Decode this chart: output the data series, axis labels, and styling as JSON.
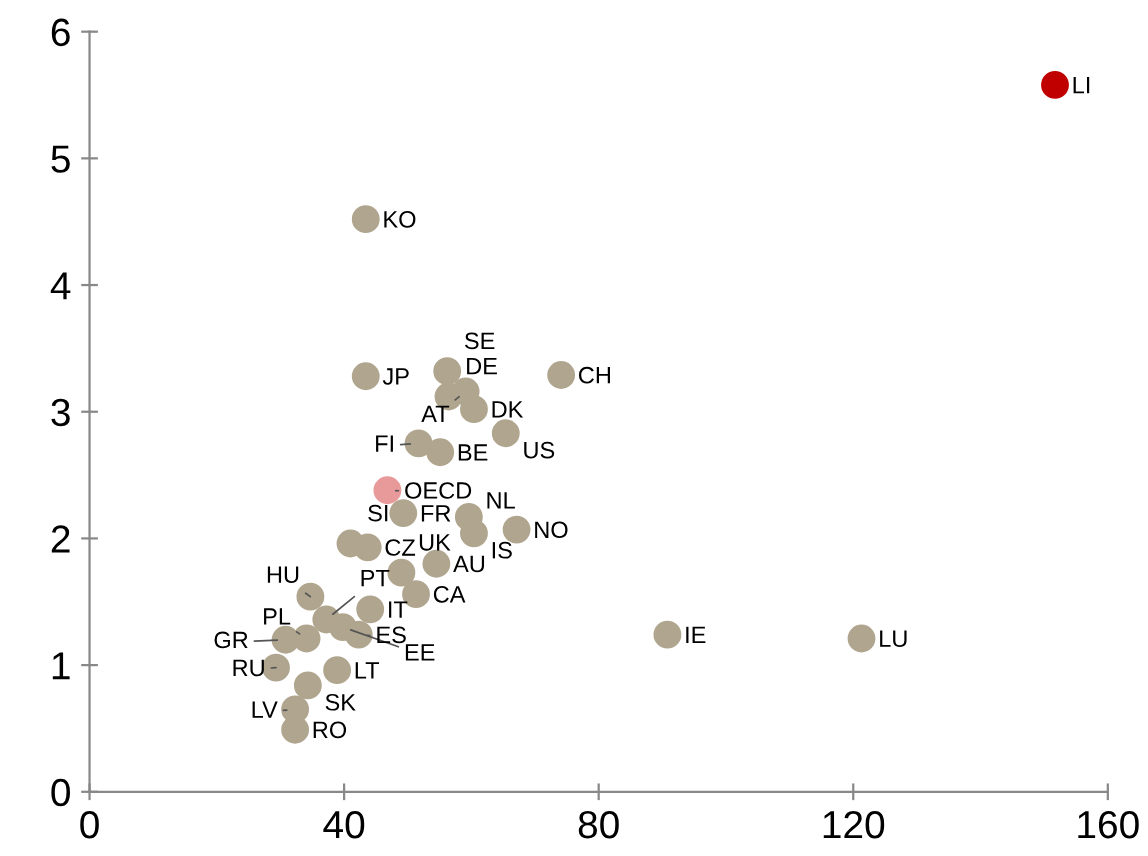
{
  "chart_data": {
    "type": "scatter",
    "x": [
      151.7,
      43.4,
      43.4,
      56.2,
      74.1,
      56.4,
      59.1,
      60.4,
      65.4,
      51.7,
      55.1,
      46.8,
      49.3,
      59.6,
      60.4,
      67.1,
      41.0,
      43.7,
      49.0,
      54.5,
      51.3,
      34.7,
      44.1,
      37.2,
      39.8,
      42.3,
      34.1,
      30.8,
      29.3,
      38.9,
      34.3,
      32.3,
      32.3,
      90.8,
      121.3
    ],
    "values": [
      5.58,
      4.52,
      3.28,
      3.32,
      3.29,
      3.12,
      3.16,
      3.02,
      2.83,
      2.75,
      2.68,
      2.38,
      2.2,
      2.17,
      2.04,
      2.07,
      1.96,
      1.93,
      1.73,
      1.8,
      1.56,
      1.54,
      1.44,
      1.36,
      1.3,
      1.24,
      1.21,
      1.2,
      0.98,
      0.96,
      0.84,
      0.65,
      0.49,
      1.24,
      1.21
    ],
    "value_labels": [
      "LI",
      "KO",
      "JP",
      "SE",
      "CH",
      "DE",
      "AT",
      "DK",
      "US",
      "FI",
      "BE",
      "OECD",
      "FR",
      "NL",
      "IS",
      "NO",
      "SI",
      "CZ",
      "UK",
      "AU",
      "CA",
      "HU",
      "IT",
      "PT",
      "EE",
      "ES",
      "PL",
      "GR",
      "RU",
      "LT",
      "SK",
      "LV",
      "RO",
      "IE",
      "LU"
    ],
    "colors": [
      "#c00000",
      "#b0a58e",
      "#b0a58e",
      "#b0a58e",
      "#b0a58e",
      "#b0a58e",
      "#b0a58e",
      "#b0a58e",
      "#b0a58e",
      "#b0a58e",
      "#b0a58e",
      "#e8999a",
      "#b0a58e",
      "#b0a58e",
      "#b0a58e",
      "#b0a58e",
      "#b0a58e",
      "#b0a58e",
      "#b0a58e",
      "#b0a58e",
      "#b0a58e",
      "#b0a58e",
      "#b0a58e",
      "#b0a58e",
      "#b0a58e",
      "#b0a58e",
      "#b0a58e",
      "#b0a58e",
      "#b0a58e",
      "#b0a58e",
      "#b0a58e",
      "#b0a58e",
      "#b0a58e",
      "#b0a58e",
      "#b0a58e"
    ],
    "xlim": [
      0,
      160
    ],
    "xticks": [
      0,
      40,
      80,
      120,
      160
    ],
    "ylim": [
      0,
      6
    ],
    "yticks": [
      0,
      1,
      2,
      3,
      4,
      5,
      6
    ],
    "marker": "circle",
    "grid": false,
    "legend": false
  }
}
